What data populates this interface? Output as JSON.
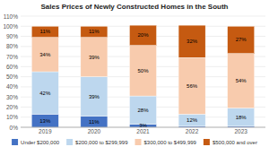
{
  "chart_data": {
    "type": "bar",
    "stacked": true,
    "title": "Sales Prices of Newly Constructed Homes in the South",
    "categories": [
      "2019",
      "2020",
      "2021",
      "2022",
      "2023"
    ],
    "series": [
      {
        "name": "Under $200,000",
        "color": "#4472C4",
        "values": [
          13,
          11,
          3,
          1,
          1
        ],
        "value_labels": [
          "13%",
          "11%",
          "3%",
          null,
          null
        ]
      },
      {
        "name": "$200,000 to $299,999",
        "color": "#BDD7EE",
        "values": [
          42,
          39,
          28,
          12,
          18
        ],
        "value_labels": [
          "42%",
          "39%",
          "28%",
          "12%",
          "18%"
        ]
      },
      {
        "name": "$300,000 to $499,999",
        "color": "#F8CBAD",
        "values": [
          34,
          39,
          50,
          56,
          54
        ],
        "value_labels": [
          "34%",
          "39%",
          "50%",
          "56%",
          "54%"
        ]
      },
      {
        "name": "$500,000 and over",
        "color": "#C55A11",
        "values": [
          11,
          11,
          20,
          32,
          27
        ],
        "value_labels": [
          "11%",
          "11%",
          "20%",
          "32%",
          "27%"
        ]
      }
    ],
    "ylim": [
      0,
      110
    ],
    "yticks": [
      {
        "value": 0,
        "label": "0%"
      },
      {
        "value": 10,
        "label": "10%"
      },
      {
        "value": 20,
        "label": "20%"
      },
      {
        "value": 30,
        "label": "30%"
      },
      {
        "value": 40,
        "label": "40%"
      },
      {
        "value": 50,
        "label": "50%"
      },
      {
        "value": 60,
        "label": "60%"
      },
      {
        "value": 70,
        "label": "70%"
      },
      {
        "value": 80,
        "label": "80%"
      },
      {
        "value": 90,
        "label": "90%"
      },
      {
        "value": 100,
        "label": "100%"
      },
      {
        "value": 110,
        "label": "110%"
      }
    ],
    "grid": true,
    "legend": "bottom",
    "data_labels": true
  }
}
